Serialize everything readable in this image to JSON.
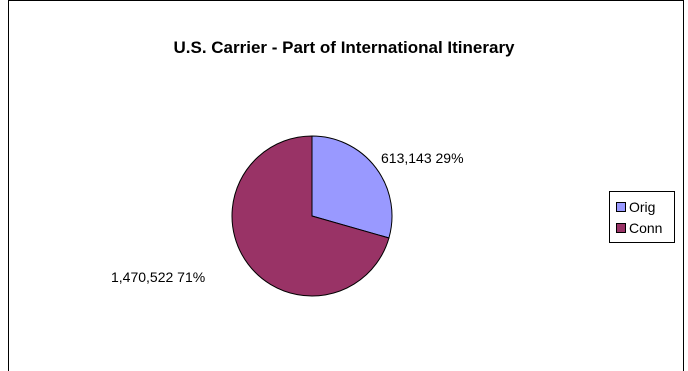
{
  "colors": {
    "orig": "#9999FF",
    "conn": "#993366",
    "outline": "#000000"
  },
  "chart_data": {
    "type": "pie",
    "title": "U.S. Carrier - Part of International Itinerary",
    "slices": [
      {
        "name": "Orig",
        "value": 613143,
        "percent": 29,
        "label": "613,143 29%",
        "color": "#9999FF"
      },
      {
        "name": "Conn",
        "value": 1470522,
        "percent": 71,
        "label": "1,470,522 71%",
        "color": "#993366"
      }
    ],
    "legend": {
      "position": "right",
      "entries": [
        "Orig",
        "Conn"
      ]
    },
    "data_labels": "value and percent"
  }
}
